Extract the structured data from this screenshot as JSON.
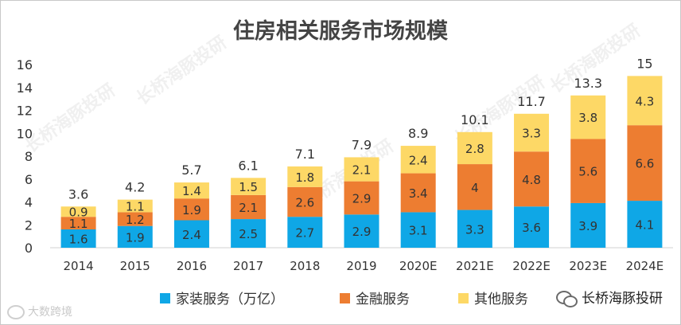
{
  "watermark_text": "长桥海豚投研",
  "corner_logo_text": "大数跨境",
  "brand_text": "长桥海豚投研",
  "chart_data": {
    "type": "bar",
    "stacked": true,
    "title": "住房相关服务市场规模",
    "xlabel": "",
    "ylabel": "",
    "ylim": [
      0,
      16
    ],
    "yticks": [
      0,
      2,
      4,
      6,
      8,
      10,
      12,
      14,
      16
    ],
    "grid": false,
    "legend_position": "bottom",
    "categories": [
      "2014",
      "2015",
      "2016",
      "2017",
      "2018",
      "2019",
      "2020E",
      "2021E",
      "2022E",
      "2023E",
      "2024E"
    ],
    "series": [
      {
        "name": "家装服务（万亿）",
        "color": "#0fa7e6",
        "values": [
          1.6,
          1.9,
          2.4,
          2.5,
          2.7,
          2.9,
          3.1,
          3.3,
          3.6,
          3.9,
          4.1
        ]
      },
      {
        "name": "金融服务",
        "color": "#ed7d31",
        "values": [
          1.1,
          1.2,
          1.9,
          2.1,
          2.6,
          2.9,
          3.4,
          4,
          4.8,
          5.6,
          6.6
        ]
      },
      {
        "name": "其他服务",
        "color": "#fdd866",
        "values": [
          0.9,
          1.1,
          1.4,
          1.5,
          1.8,
          2.1,
          2.4,
          2.8,
          3.3,
          3.8,
          4.3
        ]
      }
    ],
    "totals": [
      3.6,
      4.2,
      5.7,
      6.1,
      7.1,
      7.9,
      8.9,
      10.1,
      11.7,
      13.3,
      15
    ]
  }
}
